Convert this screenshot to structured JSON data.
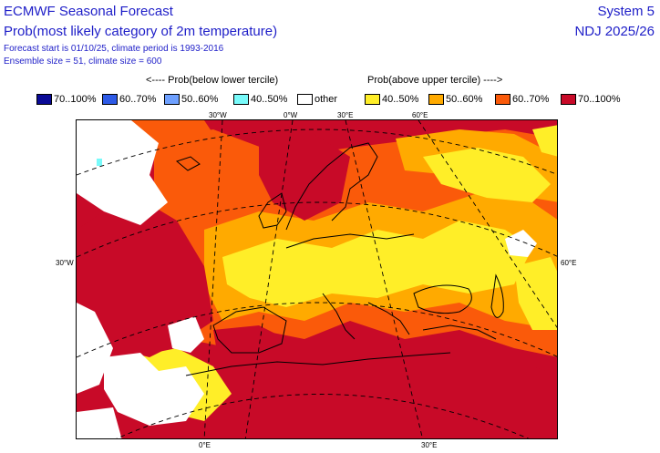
{
  "header": {
    "title_line1": "ECMWF Seasonal Forecast",
    "title_line2": "Prob(most likely category of 2m temperature)",
    "subtitle_line1": "Forecast start is 01/10/25, climate period is 1993-2016",
    "subtitle_line2": "Ensemble size = 51, climate size = 600",
    "system": "System 5",
    "season": "NDJ 2025/26"
  },
  "tercile_headers": {
    "below": "<---- Prob(below lower tercile)",
    "above": "Prob(above upper tercile) ---->"
  },
  "legend": [
    {
      "label": "70..100%",
      "color": "#0a0a96"
    },
    {
      "label": "60..70%",
      "color": "#2d5ae6"
    },
    {
      "label": "50..60%",
      "color": "#6ea0ff"
    },
    {
      "label": "40..50%",
      "color": "#78fafa"
    },
    {
      "label": "other",
      "color": "#ffffff"
    },
    {
      "label": "40..50%",
      "color": "#ffee28"
    },
    {
      "label": "50..60%",
      "color": "#ffaa00"
    },
    {
      "label": "60..70%",
      "color": "#fa5a0a"
    },
    {
      "label": "70..100%",
      "color": "#c80a28"
    }
  ],
  "grid_labels": {
    "top_30w": "30°W",
    "top_0e": "0°W",
    "top_30e": "30°E",
    "top_60e": "60°E",
    "left_30w": "30°W",
    "right_60e": "60°E",
    "bottom_0e": "0°E",
    "bottom_30e": "30°E"
  },
  "map": {
    "region": "Europe / North Atlantic",
    "colors": {
      "c70": "#c80a28",
      "c60": "#fa5a0a",
      "c50": "#ffaa00",
      "c40": "#ffee28",
      "other": "#ffffff",
      "cyan": "#78fafa"
    }
  }
}
